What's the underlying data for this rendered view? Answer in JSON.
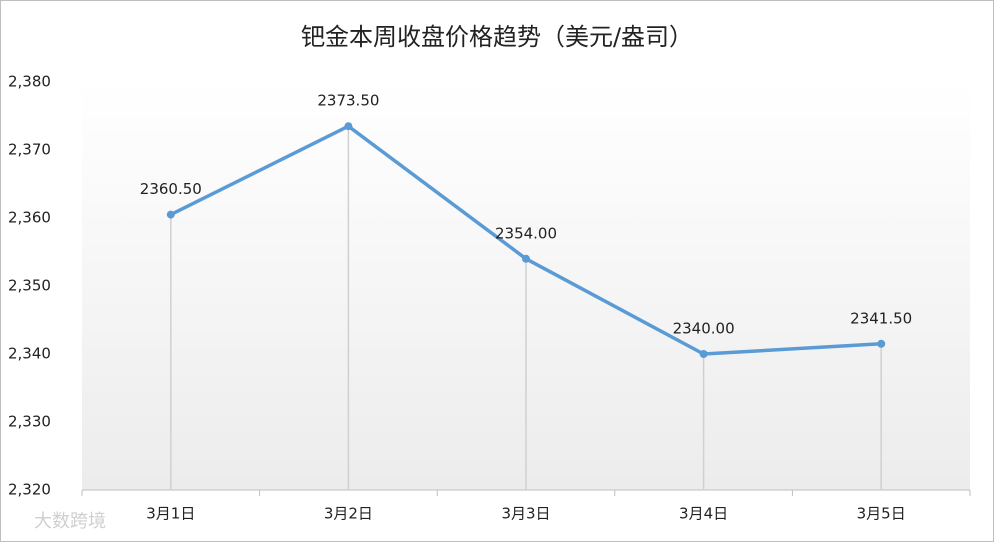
{
  "chart_data": {
    "type": "line",
    "title": "钯金本周收盘价格趋势（美元/盎司）",
    "categories": [
      "3月1日",
      "3月2日",
      "3月3日",
      "3月4日",
      "3月5日"
    ],
    "values": [
      2360.5,
      2373.5,
      2354,
      2340,
      2341.5
    ],
    "value_labels": [
      "2360.50",
      "2373.50",
      "2354.00",
      "2340.00",
      "2341.50"
    ],
    "color": "#5b9bd5",
    "ylim": [
      2320,
      2380
    ],
    "yticks": [
      {
        "value": 2320,
        "label": "2,320"
      },
      {
        "value": 2330,
        "label": "2,330"
      },
      {
        "value": 2340,
        "label": "2,340"
      },
      {
        "value": 2350,
        "label": "2,350"
      },
      {
        "value": 2360,
        "label": "2,360"
      },
      {
        "value": 2370,
        "label": "2,370"
      },
      {
        "value": 2380,
        "label": "2,380"
      }
    ],
    "drop_lines": true,
    "watermark": "大数跨境"
  }
}
